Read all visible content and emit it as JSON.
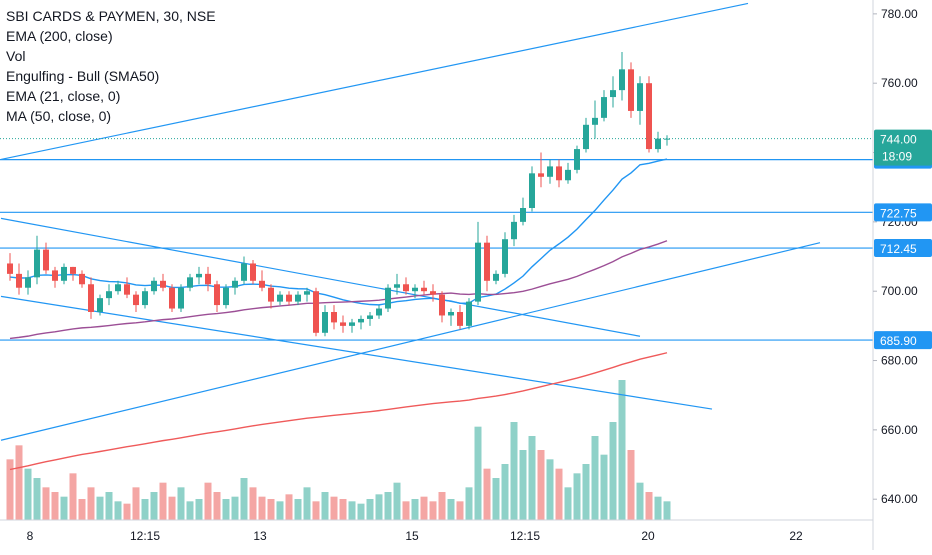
{
  "chart_data": {
    "type": "candlestick",
    "title": "SBI CARDS & PAYMEN, 30, NSE",
    "indicators": [
      "EMA (200, close)",
      "Vol",
      "Engulfing - Bull (SMA50)",
      "EMA (21, close, 0)",
      "MA (50, close, 0)"
    ],
    "ylim": [
      634,
      784
    ],
    "y_ticks": [
      "780.00",
      "760.00",
      "740.00",
      "720.00",
      "700.00",
      "680.00",
      "660.00",
      "640.00"
    ],
    "x_ticks": [
      "8",
      "12:15",
      "13",
      "15",
      "12:15",
      "20",
      "22"
    ],
    "grid": false,
    "horizontal_levels": [
      {
        "price": 737.95,
        "label": "737.95"
      },
      {
        "price": 722.75,
        "label": "722.75"
      },
      {
        "price": 712.45,
        "label": "712.45"
      },
      {
        "price": 685.9,
        "label": "685.90"
      }
    ],
    "last_price": {
      "value": "744.00",
      "countdown": "18:09"
    },
    "trendlines": [
      {
        "from": {
          "bar": -1,
          "price": 738
        },
        "to": {
          "bar": 82,
          "price": 783
        }
      },
      {
        "from": {
          "bar": -1,
          "price": 721
        },
        "to": {
          "bar": 70,
          "price": 687
        }
      },
      {
        "from": {
          "bar": -1,
          "price": 698.5
        },
        "to": {
          "bar": 78,
          "price": 666
        }
      },
      {
        "from": {
          "bar": -1,
          "price": 657
        },
        "to": {
          "bar": 90,
          "price": 714
        }
      }
    ],
    "series": [
      {
        "name": "Price",
        "ohlc": [
          [
            708,
            711,
            703,
            705
          ],
          [
            705,
            708,
            699,
            701
          ],
          [
            701,
            706,
            699,
            704
          ],
          [
            704,
            716,
            702,
            712
          ],
          [
            712,
            714,
            705,
            706
          ],
          [
            706,
            707,
            701,
            703
          ],
          [
            703,
            708,
            702,
            707
          ],
          [
            707,
            707,
            703,
            705
          ],
          [
            705,
            706,
            701,
            702
          ],
          [
            702,
            704,
            692,
            694
          ],
          [
            694,
            699,
            693,
            698
          ],
          [
            698,
            702,
            696,
            700
          ],
          [
            700,
            703,
            699,
            702
          ],
          [
            702,
            704,
            698,
            699
          ],
          [
            699,
            700,
            694,
            696
          ],
          [
            696,
            701,
            695,
            700
          ],
          [
            700,
            704,
            699,
            703
          ],
          [
            703,
            705,
            700,
            701
          ],
          [
            701,
            702,
            694,
            695
          ],
          [
            695,
            702,
            694,
            701
          ],
          [
            701,
            705,
            700,
            704
          ],
          [
            704,
            707,
            702,
            705
          ],
          [
            705,
            707,
            700,
            702
          ],
          [
            702,
            703,
            694,
            696
          ],
          [
            696,
            702,
            695,
            701
          ],
          [
            701,
            704,
            699,
            703
          ],
          [
            703,
            710,
            702,
            708
          ],
          [
            708,
            709,
            702,
            703
          ],
          [
            703,
            706,
            700,
            701
          ],
          [
            701,
            702,
            695,
            697
          ],
          [
            697,
            700,
            696,
            699
          ],
          [
            699,
            700,
            696,
            697
          ],
          [
            697,
            700,
            696,
            699
          ],
          [
            699,
            701,
            697,
            700
          ],
          [
            700,
            701,
            687,
            688
          ],
          [
            688,
            696,
            687,
            694
          ],
          [
            694,
            696,
            689,
            691
          ],
          [
            691,
            693,
            688,
            690
          ],
          [
            690,
            692,
            688,
            691
          ],
          [
            691,
            693,
            689,
            692
          ],
          [
            692,
            694,
            690,
            693
          ],
          [
            693,
            696,
            692,
            695
          ],
          [
            695,
            702,
            694,
            701
          ],
          [
            701,
            705,
            699,
            702
          ],
          [
            702,
            704,
            699,
            700
          ],
          [
            700,
            702,
            698,
            701
          ],
          [
            701,
            703,
            699,
            700
          ],
          [
            700,
            702,
            697,
            699
          ],
          [
            699,
            700,
            691,
            693
          ],
          [
            693,
            695,
            690,
            694
          ],
          [
            694,
            696,
            689,
            690
          ],
          [
            690,
            698,
            689,
            697
          ],
          [
            697,
            720,
            696,
            714
          ],
          [
            714,
            716,
            700,
            703
          ],
          [
            703,
            706,
            702,
            705
          ],
          [
            705,
            717,
            704,
            715
          ],
          [
            715,
            722,
            713,
            720
          ],
          [
            720,
            727,
            719,
            724
          ],
          [
            724,
            736,
            723,
            734
          ],
          [
            734,
            740,
            730,
            733
          ],
          [
            733,
            738,
            731,
            736
          ],
          [
            736,
            738,
            730,
            732
          ],
          [
            732,
            737,
            731,
            735
          ],
          [
            735,
            742,
            734,
            741
          ],
          [
            741,
            750,
            740,
            748
          ],
          [
            748,
            755,
            744,
            750
          ],
          [
            750,
            758,
            749,
            756
          ],
          [
            756,
            762,
            753,
            758
          ],
          [
            758,
            769,
            755,
            764
          ],
          [
            764,
            766,
            750,
            752
          ],
          [
            752,
            762,
            748,
            760
          ],
          [
            760,
            762,
            740,
            741
          ],
          [
            741,
            746,
            740,
            744
          ],
          [
            744,
            745,
            742,
            744
          ]
        ],
        "volume": [
          26,
          32,
          22,
          18,
          14,
          12,
          10,
          20,
          9,
          14,
          10,
          12,
          8,
          7,
          14,
          9,
          12,
          16,
          10,
          14,
          8,
          9,
          16,
          12,
          9,
          10,
          18,
          14,
          10,
          9,
          8,
          11,
          9,
          14,
          8,
          12,
          10,
          9,
          8,
          7,
          9,
          11,
          12,
          16,
          8,
          9,
          10,
          8,
          12,
          9,
          8,
          14,
          40,
          22,
          18,
          24,
          42,
          30,
          36,
          30,
          26,
          22,
          14,
          20,
          24,
          36,
          28,
          42,
          60,
          30,
          16,
          12,
          10,
          8
        ]
      },
      {
        "name": "EMA (21, close, 0)"
      },
      {
        "name": "MA (50, close, 0)"
      },
      {
        "name": "EMA (200, close)"
      },
      {
        "name": "Vol"
      }
    ],
    "colors": {
      "up": "#26a69a",
      "down": "#ef5350",
      "vol_up": "#8fd1c8",
      "vol_down": "#f4a6a4",
      "ema21": "#2196f3",
      "ma50": "#9c4f96",
      "ema200": "#ef5a5a",
      "levels": "#2196f3",
      "last_line": "#26a69a",
      "label_bg": "#26a69a",
      "level_label_bg": "#2196f3"
    }
  }
}
